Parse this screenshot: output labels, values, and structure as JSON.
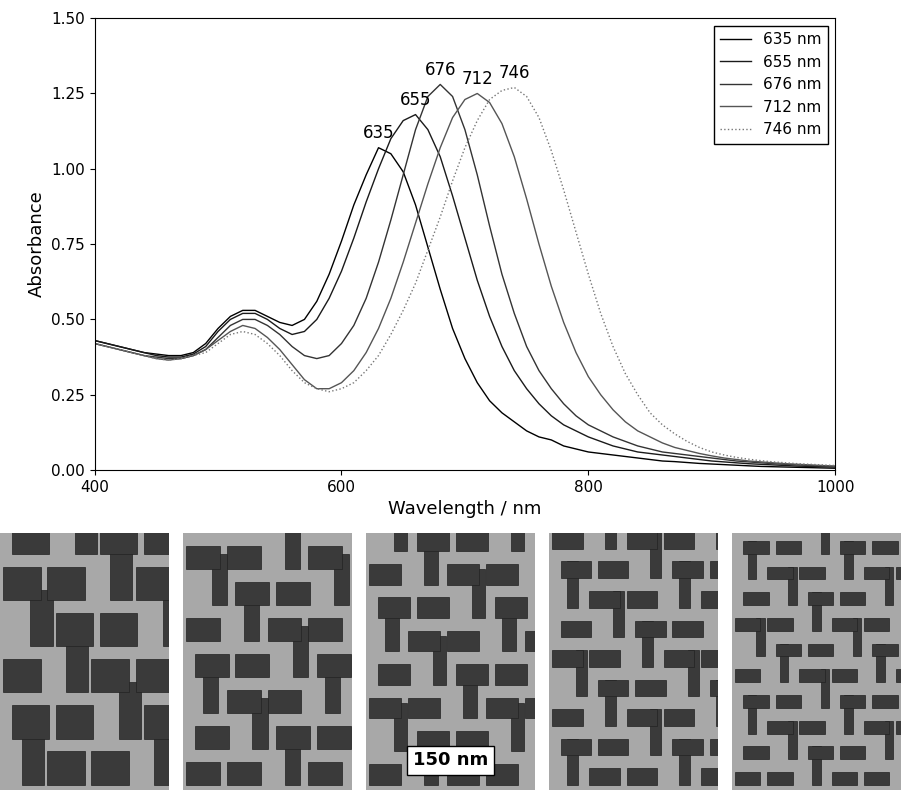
{
  "chart_data": {
    "type": "line",
    "x_label": "Wavelength / nm",
    "y_label": "Absorbance",
    "x": [
      400,
      410,
      420,
      430,
      440,
      450,
      460,
      470,
      480,
      490,
      500,
      510,
      520,
      530,
      540,
      550,
      560,
      570,
      580,
      590,
      600,
      610,
      620,
      630,
      640,
      650,
      660,
      670,
      680,
      690,
      700,
      710,
      720,
      730,
      740,
      750,
      760,
      770,
      780,
      790,
      800,
      810,
      820,
      830,
      840,
      850,
      860,
      870,
      880,
      890,
      900,
      910,
      920,
      930,
      940,
      950,
      960,
      970,
      980,
      990,
      1000
    ],
    "series": [
      {
        "name": "635 nm",
        "annotation": "635",
        "color": "#000000",
        "line_style": "solid",
        "values": [
          0.43,
          0.42,
          0.41,
          0.4,
          0.39,
          0.385,
          0.38,
          0.38,
          0.39,
          0.42,
          0.47,
          0.51,
          0.53,
          0.53,
          0.51,
          0.49,
          0.48,
          0.5,
          0.56,
          0.65,
          0.76,
          0.88,
          0.98,
          1.07,
          1.05,
          0.99,
          0.88,
          0.74,
          0.6,
          0.47,
          0.37,
          0.29,
          0.23,
          0.19,
          0.16,
          0.13,
          0.11,
          0.1,
          0.08,
          0.07,
          0.06,
          0.055,
          0.05,
          0.045,
          0.04,
          0.035,
          0.03,
          0.028,
          0.025,
          0.022,
          0.02,
          0.018,
          0.016,
          0.014,
          0.012,
          0.011,
          0.01,
          0.009,
          0.008,
          0.007,
          0.006
        ]
      },
      {
        "name": "655 nm",
        "annotation": "655",
        "color": "#1a1a1a",
        "line_style": "solid",
        "values": [
          0.43,
          0.42,
          0.41,
          0.4,
          0.39,
          0.38,
          0.375,
          0.375,
          0.385,
          0.41,
          0.46,
          0.5,
          0.52,
          0.52,
          0.5,
          0.47,
          0.45,
          0.46,
          0.5,
          0.57,
          0.66,
          0.77,
          0.89,
          1.0,
          1.1,
          1.16,
          1.18,
          1.13,
          1.04,
          0.91,
          0.77,
          0.63,
          0.51,
          0.41,
          0.33,
          0.27,
          0.22,
          0.18,
          0.15,
          0.13,
          0.11,
          0.095,
          0.08,
          0.07,
          0.06,
          0.055,
          0.05,
          0.045,
          0.04,
          0.035,
          0.03,
          0.027,
          0.024,
          0.021,
          0.019,
          0.017,
          0.015,
          0.013,
          0.012,
          0.011,
          0.01
        ]
      },
      {
        "name": "676 nm",
        "annotation": "676",
        "color": "#333333",
        "line_style": "solid",
        "values": [
          0.42,
          0.41,
          0.4,
          0.39,
          0.38,
          0.375,
          0.37,
          0.37,
          0.38,
          0.4,
          0.44,
          0.48,
          0.5,
          0.5,
          0.48,
          0.45,
          0.41,
          0.38,
          0.37,
          0.38,
          0.42,
          0.48,
          0.57,
          0.69,
          0.83,
          0.98,
          1.13,
          1.24,
          1.28,
          1.24,
          1.13,
          0.98,
          0.81,
          0.65,
          0.52,
          0.41,
          0.33,
          0.27,
          0.22,
          0.18,
          0.15,
          0.13,
          0.11,
          0.095,
          0.08,
          0.07,
          0.06,
          0.055,
          0.05,
          0.045,
          0.04,
          0.035,
          0.03,
          0.027,
          0.024,
          0.021,
          0.019,
          0.017,
          0.015,
          0.013,
          0.012
        ]
      },
      {
        "name": "712 nm",
        "annotation": "712",
        "color": "#555555",
        "line_style": "solid",
        "values": [
          0.42,
          0.41,
          0.4,
          0.39,
          0.38,
          0.37,
          0.365,
          0.37,
          0.38,
          0.4,
          0.43,
          0.46,
          0.48,
          0.47,
          0.44,
          0.4,
          0.35,
          0.3,
          0.27,
          0.27,
          0.29,
          0.33,
          0.39,
          0.47,
          0.57,
          0.69,
          0.82,
          0.95,
          1.07,
          1.17,
          1.23,
          1.25,
          1.22,
          1.15,
          1.04,
          0.9,
          0.75,
          0.61,
          0.49,
          0.39,
          0.31,
          0.25,
          0.2,
          0.16,
          0.13,
          0.11,
          0.09,
          0.075,
          0.065,
          0.055,
          0.047,
          0.04,
          0.035,
          0.03,
          0.027,
          0.024,
          0.021,
          0.019,
          0.017,
          0.015,
          0.013
        ]
      },
      {
        "name": "746 nm",
        "annotation": "746",
        "color": "#777777",
        "line_style": "dotted",
        "values": [
          0.42,
          0.41,
          0.4,
          0.39,
          0.38,
          0.37,
          0.365,
          0.37,
          0.38,
          0.39,
          0.42,
          0.45,
          0.46,
          0.45,
          0.42,
          0.38,
          0.33,
          0.29,
          0.27,
          0.26,
          0.27,
          0.29,
          0.33,
          0.38,
          0.45,
          0.53,
          0.62,
          0.73,
          0.84,
          0.96,
          1.07,
          1.16,
          1.23,
          1.26,
          1.27,
          1.24,
          1.17,
          1.06,
          0.93,
          0.79,
          0.65,
          0.52,
          0.41,
          0.32,
          0.25,
          0.19,
          0.15,
          0.12,
          0.095,
          0.075,
          0.06,
          0.05,
          0.042,
          0.036,
          0.031,
          0.027,
          0.024,
          0.021,
          0.019,
          0.017,
          0.015
        ]
      }
    ],
    "xlim": [
      400,
      1000
    ],
    "xticks": [
      400,
      600,
      800,
      1000
    ],
    "ylim": [
      0,
      1.5
    ],
    "yticks": [
      {
        "value": 0,
        "label": "0.00"
      },
      {
        "value": 0.25,
        "label": "0.25"
      },
      {
        "value": 0.5,
        "label": "0.50"
      },
      {
        "value": 0.75,
        "label": "0.75"
      },
      {
        "value": 1.0,
        "label": "1.00"
      },
      {
        "value": 1.25,
        "label": "1.25"
      },
      {
        "value": 1.5,
        "label": "1.50"
      }
    ],
    "legend": "upper right",
    "grid": false
  },
  "images": {
    "scale_bar": "150 nm"
  }
}
